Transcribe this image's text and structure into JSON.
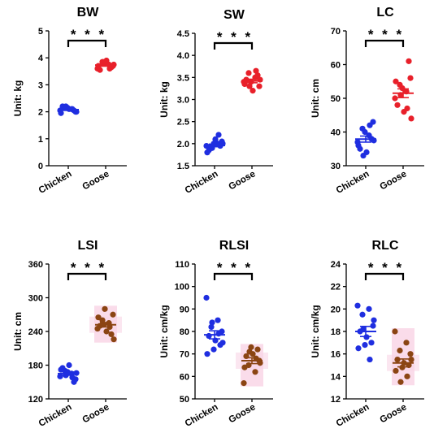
{
  "figure": {
    "colors": {
      "chicken_blue": "#1f2ee0",
      "goose_red": "#e8202a",
      "goose_brown": "#8b4513",
      "pink_band": "#f9d6e6"
    }
  },
  "chart_data": [
    {
      "type": "scatter",
      "title": "BW",
      "ylabel": "Unit: kg",
      "categories": [
        "Chicken",
        "Goose"
      ],
      "ylim": [
        0,
        5
      ],
      "yticks": [
        0,
        1,
        2,
        3,
        4,
        5
      ],
      "significance": "* * *",
      "series": [
        {
          "name": "Chicken",
          "color": "#1f2ee0",
          "values": [
            2.05,
            2.1,
            2.15,
            2.0,
            2.2,
            2.1,
            2.05,
            2.15,
            1.95,
            2.1,
            2.2,
            2.0
          ],
          "mean": 2.08,
          "sem": 0.03
        },
        {
          "name": "Goose",
          "color": "#e8202a",
          "values": [
            3.6,
            3.75,
            3.85,
            3.7,
            3.55,
            3.9,
            3.65,
            3.8,
            3.7,
            3.6,
            3.85,
            3.75
          ],
          "mean": 3.73,
          "sem": 0.04
        }
      ]
    },
    {
      "type": "scatter",
      "title": "SW",
      "ylabel": "Unit: kg",
      "categories": [
        "Chicken",
        "Goose"
      ],
      "ylim": [
        1.5,
        4.5
      ],
      "yticks": [
        1.5,
        2.0,
        2.5,
        3.0,
        3.5,
        4.0,
        4.5
      ],
      "significance": "* * *",
      "series": [
        {
          "name": "Chicken",
          "color": "#1f2ee0",
          "values": [
            1.95,
            2.0,
            1.9,
            2.05,
            1.85,
            2.1,
            1.95,
            2.0,
            1.8,
            2.2,
            1.9,
            2.0
          ],
          "mean": 1.96,
          "sem": 0.03
        },
        {
          "name": "Goose",
          "color": "#e8202a",
          "values": [
            3.4,
            3.5,
            3.6,
            3.3,
            3.45,
            3.2,
            3.55,
            3.4,
            3.35,
            3.65,
            3.3,
            3.45
          ],
          "mean": 3.42,
          "sem": 0.04
        }
      ]
    },
    {
      "type": "scatter",
      "title": "LC",
      "ylabel": "Unit: cm",
      "categories": [
        "Chicken",
        "Goose"
      ],
      "ylim": [
        30,
        70
      ],
      "yticks": [
        30,
        40,
        50,
        60,
        70
      ],
      "significance": "* * *",
      "series": [
        {
          "name": "Chicken",
          "color": "#1f2ee0",
          "values": [
            37,
            39,
            41,
            43,
            35,
            34,
            38,
            40,
            36,
            42,
            33,
            37.5
          ],
          "mean": 37.9,
          "sem": 0.9
        },
        {
          "name": "Goose",
          "color": "#e8202a",
          "values": [
            50,
            52,
            54,
            56,
            48,
            46,
            61,
            53,
            55,
            47,
            51,
            44
          ],
          "mean": 51.5,
          "sem": 1.3
        }
      ]
    },
    {
      "type": "scatter",
      "title": "LSI",
      "ylabel": "Unit: cm",
      "categories": [
        "Chicken",
        "Goose"
      ],
      "ylim": [
        120,
        360
      ],
      "yticks": [
        120,
        180,
        240,
        300,
        360
      ],
      "significance": "* * *",
      "band": true,
      "series": [
        {
          "name": "Chicken",
          "color": "#1f2ee0",
          "values": [
            160,
            165,
            170,
            155,
            175,
            180,
            150,
            168,
            172,
            158,
            162,
            166
          ],
          "mean": 165,
          "sem": 3
        },
        {
          "name": "Goose",
          "color": "#8b4513",
          "values": [
            245,
            255,
            260,
            270,
            250,
            240,
            235,
            280,
            265,
            248,
            252,
            226
          ],
          "mean": 252,
          "sem": 4
        }
      ]
    },
    {
      "type": "scatter",
      "title": "RLSI",
      "ylabel": "Unit: cm/kg",
      "categories": [
        "Chicken",
        "Goose"
      ],
      "ylim": [
        50,
        110
      ],
      "yticks": [
        50,
        60,
        70,
        80,
        90,
        100,
        110
      ],
      "significance": "* * *",
      "band": true,
      "series": [
        {
          "name": "Chicken",
          "color": "#1f2ee0",
          "values": [
            95,
            85,
            82,
            80,
            78,
            76,
            74,
            72,
            70,
            79,
            84,
            75
          ],
          "mean": 78.5,
          "sem": 1.8
        },
        {
          "name": "Goose",
          "color": "#8b4513",
          "values": [
            57,
            62,
            65,
            67,
            69,
            70,
            72,
            73,
            64,
            68,
            71,
            66
          ],
          "mean": 67,
          "sem": 1.3
        }
      ]
    },
    {
      "type": "scatter",
      "title": "RLC",
      "ylabel": "Unit: cm/kg",
      "categories": [
        "Chicken",
        "Goose"
      ],
      "ylim": [
        12,
        24
      ],
      "yticks": [
        12,
        14,
        16,
        18,
        20,
        22,
        24
      ],
      "significance": "* * *",
      "band": true,
      "series": [
        {
          "name": "Chicken",
          "color": "#1f2ee0",
          "values": [
            20.3,
            20.0,
            19.5,
            18.5,
            18.0,
            17.5,
            17.0,
            16.8,
            16.5,
            15.5,
            18.2,
            19.0
          ],
          "mean": 18.0,
          "sem": 0.45
        },
        {
          "name": "Goose",
          "color": "#8b4513",
          "values": [
            18.0,
            17.0,
            16.3,
            16.0,
            15.5,
            15.2,
            15.0,
            14.8,
            14.5,
            14.0,
            13.5,
            15.5
          ],
          "mean": 15.2,
          "sem": 0.35
        }
      ]
    }
  ]
}
